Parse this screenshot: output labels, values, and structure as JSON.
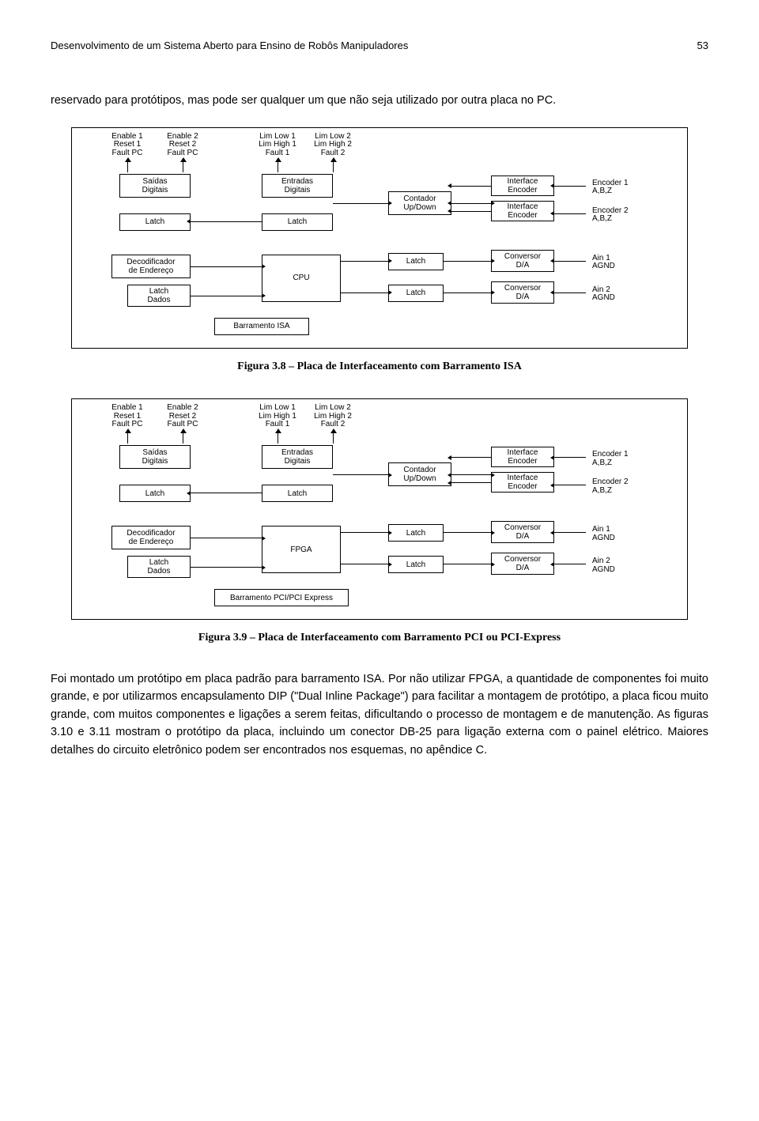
{
  "header": {
    "title": "Desenvolvimento de um Sistema Aberto para Ensino de Robôs Manipuladores",
    "page": "53"
  },
  "para1": "reservado para protótipos, mas pode ser qualquer um que não seja utilizado por outra placa no PC.",
  "fig1": {
    "caption": "Figura 3.8 – Placa de Interfaceamento com Barramento ISA",
    "top_labels": [
      [
        "Enable 1",
        "Reset 1",
        "Fault PC"
      ],
      [
        "Enable 2",
        "Reset 2",
        "Fault PC"
      ],
      [
        "Lim Low 1",
        "Lim High 1",
        "Fault 1"
      ],
      [
        "Lim Low 2",
        "Lim High 2",
        "Fault 2"
      ]
    ],
    "blocks": {
      "saidas": "Saídas\nDigitais",
      "entradas": "Entradas\nDigitais",
      "latch": "Latch",
      "contador": "Contador\nUp/Down",
      "iface_enc": "Interface\nEncoder",
      "conv_da": "Conversor\nD/A",
      "decod": "Decodificador\nde Endereço",
      "latch_dados": "Latch\nDados",
      "cpu": "CPU",
      "barramento": "Barramento ISA"
    },
    "right_labels": [
      [
        "Encoder 1",
        "A,B,Z"
      ],
      [
        "Encoder 2",
        "A,B,Z"
      ],
      [
        "Ain 1",
        "AGND"
      ],
      [
        "Ain 2",
        "AGND"
      ]
    ]
  },
  "fig2": {
    "caption": "Figura 3.9 – Placa de Interfaceamento com Barramento PCI ou PCI-Express",
    "top_labels": [
      [
        "Enable 1",
        "Reset 1",
        "Fault PC"
      ],
      [
        "Enable 2",
        "Reset 2",
        "Fault PC"
      ],
      [
        "Lim Low 1",
        "Lim High 1",
        "Fault 1"
      ],
      [
        "Lim Low 2",
        "Lim High 2",
        "Fault 2"
      ]
    ],
    "blocks": {
      "saidas": "Saídas\nDigitais",
      "entradas": "Entradas\nDigitais",
      "latch": "Latch",
      "contador": "Contador\nUp/Down",
      "iface_enc": "Interface\nEncoder",
      "conv_da": "Conversor\nD/A",
      "decod": "Decodificador\nde Endereço",
      "latch_dados": "Latch\nDados",
      "cpu": "FPGA",
      "barramento": "Barramento PCI/PCI Express"
    },
    "right_labels": [
      [
        "Encoder 1",
        "A,B,Z"
      ],
      [
        "Encoder 2",
        "A,B,Z"
      ],
      [
        "Ain 1",
        "AGND"
      ],
      [
        "Ain 2",
        "AGND"
      ]
    ]
  },
  "para2": "Foi montado um protótipo em placa padrão para barramento ISA. Por não utilizar FPGA, a quantidade de componentes foi muito grande, e por utilizarmos encapsulamento DIP (\"Dual Inline Package\") para facilitar a montagem de protótipo, a placa ficou muito grande, com muitos componentes e ligações a serem feitas, dificultando o processo de montagem e de manutenção. As figuras 3.10 e 3.11 mostram o protótipo da placa, incluindo um conector DB-25 para ligação externa com o painel elétrico. Maiores detalhes do circuito eletrônico podem ser encontrados nos esquemas, no apêndice C."
}
